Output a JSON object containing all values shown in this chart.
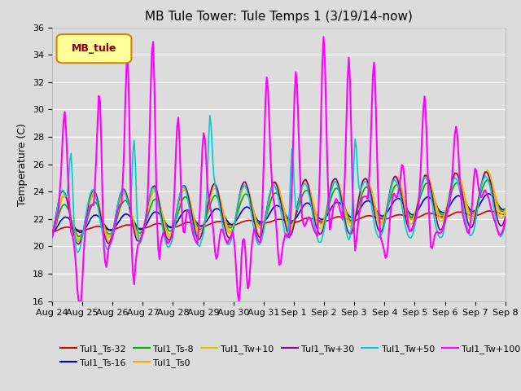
{
  "title": "MB Tule Tower: Tule Temps 1 (3/19/14-now)",
  "ylabel": "Temperature (C)",
  "ylim": [
    16,
    36
  ],
  "yticks": [
    16,
    18,
    20,
    22,
    24,
    26,
    28,
    30,
    32,
    34,
    36
  ],
  "x_labels": [
    "Aug 24",
    "Aug 25",
    "Aug 26",
    "Aug 27",
    "Aug 28",
    "Aug 29",
    "Aug 30",
    "Aug 31",
    "Sep 1",
    "Sep 2",
    "Sep 3",
    "Sep 4",
    "Sep 5",
    "Sep 6",
    "Sep 7",
    "Sep 8"
  ],
  "series": {
    "Tul1_Ts-32": {
      "color": "#cc0000",
      "lw": 1.2
    },
    "Tul1_Ts-16": {
      "color": "#0000cc",
      "lw": 1.2
    },
    "Tul1_Ts-8": {
      "color": "#00aa00",
      "lw": 1.2
    },
    "Tul1_Ts0": {
      "color": "#ffaa00",
      "lw": 1.2
    },
    "Tul1_Tw+10": {
      "color": "#cccc00",
      "lw": 1.2
    },
    "Tul1_Tw+30": {
      "color": "#880088",
      "lw": 1.2
    },
    "Tul1_Tw+50": {
      "color": "#00cccc",
      "lw": 1.2
    },
    "Tul1_Tw+100": {
      "color": "#ff00ff",
      "lw": 1.5
    }
  },
  "legend_box_color": "#ffff99",
  "legend_box_edge": "#cc8800",
  "legend_label": "MB_tule",
  "background_color": "#dcdcdc",
  "grid_color": "#ffffff",
  "title_fontsize": 11,
  "ylabel_fontsize": 9,
  "tick_fontsize": 8
}
